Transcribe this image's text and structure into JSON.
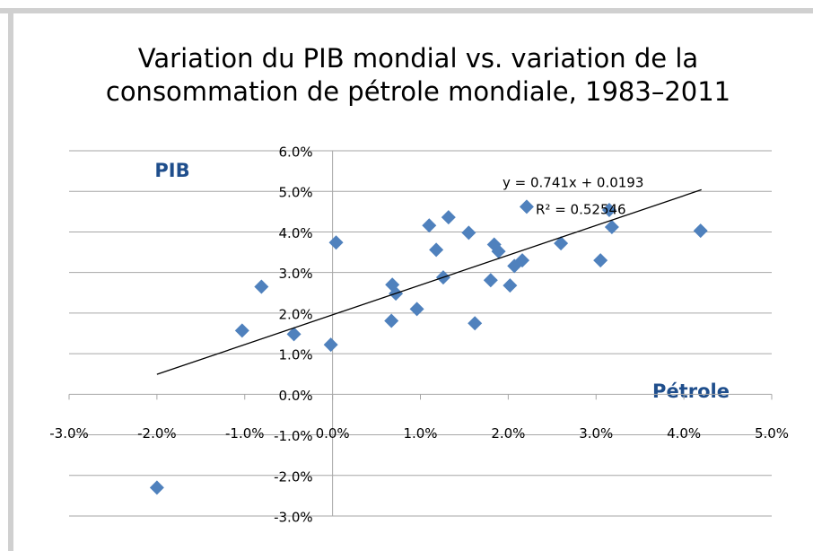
{
  "chart_data": {
    "type": "scatter",
    "title": [
      "Variation du PIB mondial vs. variation de la",
      "consommation de pétrole mondiale, 1983–2011"
    ],
    "y_label": "PIB",
    "x_label": "Pétrole",
    "color": "#4f81bd",
    "grid": true,
    "x": [
      -2.0,
      -1.03,
      -0.81,
      -0.44,
      -0.02,
      0.04,
      0.67,
      0.68,
      0.72,
      0.96,
      1.1,
      1.18,
      1.26,
      1.32,
      1.55,
      1.62,
      1.8,
      1.84,
      1.89,
      2.02,
      2.07,
      2.16,
      2.21,
      2.6,
      3.05,
      3.15,
      3.18,
      4.19
    ],
    "y": [
      -2.3,
      1.57,
      2.65,
      1.48,
      1.22,
      3.74,
      1.81,
      2.7,
      2.48,
      2.1,
      4.16,
      3.56,
      2.88,
      4.36,
      3.98,
      1.75,
      2.81,
      3.69,
      3.52,
      2.68,
      3.16,
      3.3,
      4.62,
      3.72,
      3.3,
      4.54,
      4.12,
      4.03
    ],
    "xlim": [
      -3,
      5
    ],
    "xticks": [
      {
        "value": -3,
        "label": "-3.0%"
      },
      {
        "value": -2,
        "label": "-2.0%"
      },
      {
        "value": -1,
        "label": "-1.0%"
      },
      {
        "value": 0,
        "label": "0.0%"
      },
      {
        "value": 1,
        "label": "1.0%"
      },
      {
        "value": 2,
        "label": "2.0%"
      },
      {
        "value": 3,
        "label": "3.0%"
      },
      {
        "value": 4,
        "label": "4.0%"
      },
      {
        "value": 5,
        "label": "5.0%"
      }
    ],
    "ylim": [
      -3,
      6
    ],
    "yticks": [
      {
        "value": -3,
        "label": "-3.0%"
      },
      {
        "value": -2,
        "label": "-2.0%"
      },
      {
        "value": -1,
        "label": "-1.0%"
      },
      {
        "value": 0,
        "label": "0.0%"
      },
      {
        "value": 1,
        "label": "1.0%"
      },
      {
        "value": 2,
        "label": "2.0%"
      },
      {
        "value": 3,
        "label": "3.0%"
      },
      {
        "value": 4,
        "label": "4.0%"
      },
      {
        "value": 5,
        "label": "5.0%"
      },
      {
        "value": 6,
        "label": "6.0%"
      }
    ],
    "trendline": {
      "x": [
        -2.0,
        4.2
      ],
      "y": [
        0.49,
        5.04
      ],
      "equation": "y = 0.741x + 0.0193",
      "r2": "R² = 0.52546"
    }
  }
}
